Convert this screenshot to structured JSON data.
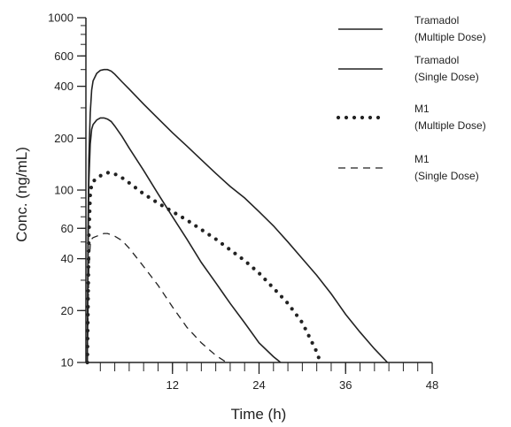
{
  "chart_data": {
    "type": "line",
    "title": "",
    "xlabel": "Time (h)",
    "ylabel": "Conc. (ng/mL)",
    "xlim": [
      0,
      48
    ],
    "ylim": [
      10,
      1000
    ],
    "yscale": "log",
    "x_ticks": [
      12,
      24,
      36,
      48
    ],
    "x_minor_step": 2,
    "y_ticks": [
      10,
      20,
      40,
      60,
      100,
      200,
      400,
      600,
      1000
    ],
    "grid": false,
    "legend_position": "top-right",
    "series": [
      {
        "name": "Tramadol\n(Multiple Dose)",
        "style": "solid",
        "x": [
          0.2,
          0.3,
          0.4,
          0.6,
          0.8,
          1,
          1.5,
          2,
          2.5,
          3,
          3.5,
          4,
          5,
          6,
          8,
          10,
          12,
          14,
          16,
          18,
          20,
          22,
          24,
          26,
          28,
          30,
          32,
          34,
          36,
          38,
          40,
          41.8
        ],
        "y": [
          10,
          60,
          150,
          280,
          380,
          430,
          475,
          495,
          500,
          500,
          490,
          470,
          425,
          385,
          315,
          260,
          215,
          180,
          150,
          125,
          105,
          90,
          75,
          62,
          50,
          40,
          32,
          25,
          19,
          15,
          12,
          10
        ]
      },
      {
        "name": "Tramadol\n(Single Dose)",
        "style": "solid",
        "x": [
          0.2,
          0.3,
          0.4,
          0.6,
          0.8,
          1,
          1.5,
          2,
          2.5,
          3,
          3.5,
          4,
          5,
          6,
          8,
          10,
          12,
          14,
          16,
          18,
          20,
          22,
          24,
          26,
          27
        ],
        "y": [
          10,
          40,
          110,
          185,
          225,
          240,
          255,
          262,
          262,
          258,
          250,
          235,
          205,
          175,
          130,
          95,
          70,
          52,
          38,
          29,
          22,
          17,
          13,
          10.8,
          10
        ]
      },
      {
        "name": "M1\n(Multiple Dose)",
        "style": "dotted",
        "x": [
          0.2,
          0.4,
          0.6,
          0.8,
          1,
          1.5,
          2,
          2.5,
          3,
          3.5,
          4,
          5,
          6,
          8,
          10,
          12,
          14,
          16,
          18,
          20,
          22,
          24,
          26,
          28,
          30,
          31,
          32,
          32.5
        ],
        "y": [
          10,
          55,
          95,
          108,
          112,
          117,
          121,
          124,
          126,
          126,
          124,
          118,
          110,
          95,
          84,
          75,
          67,
          59,
          52,
          45,
          39,
          33,
          27,
          22,
          17,
          14,
          11.5,
          10
        ]
      },
      {
        "name": "M1\n(Single Dose)",
        "style": "dashed",
        "x": [
          0.2,
          0.4,
          0.6,
          0.8,
          1,
          1.5,
          2,
          2.5,
          3,
          3.5,
          4,
          5,
          6,
          8,
          10,
          12,
          14,
          16,
          18,
          19.5
        ],
        "y": [
          10,
          35,
          48,
          52,
          53,
          54,
          55,
          56,
          56,
          55,
          54,
          51,
          46,
          36,
          28,
          21,
          16,
          13,
          11,
          10
        ]
      }
    ]
  }
}
